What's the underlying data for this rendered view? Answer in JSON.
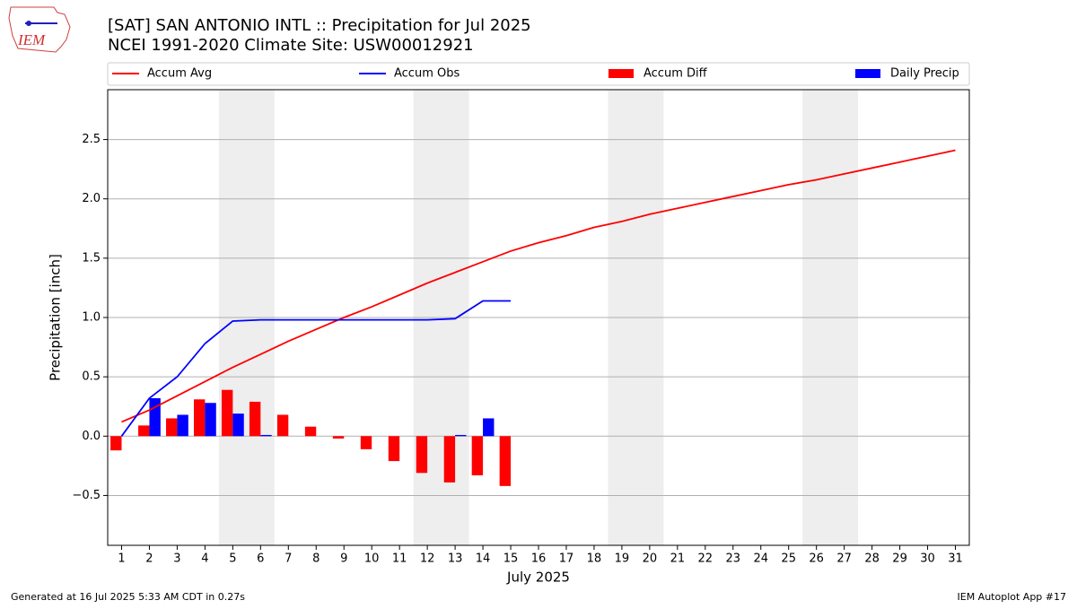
{
  "logo_text": "IEM",
  "footer_left": "Generated at 16 Jul 2025 5:33 AM CDT in 0.27s",
  "footer_right": "IEM Autoplot App #17",
  "chart_data": {
    "type": "line-bar",
    "title": "[SAT] SAN ANTONIO INTL :: Precipitation for Jul 2025",
    "subtitle": "NCEI 1991-2020 Climate Site: USW00012921",
    "x_label": "July 2025",
    "y_label": "Precipitation [inch]",
    "x": [
      1,
      2,
      3,
      4,
      5,
      6,
      7,
      8,
      9,
      10,
      11,
      12,
      13,
      14,
      15,
      16,
      17,
      18,
      19,
      20,
      21,
      22,
      23,
      24,
      25,
      26,
      27,
      28,
      29,
      30,
      31
    ],
    "xlim": [
      0.5,
      31.5
    ],
    "xticks": [
      1,
      2,
      3,
      4,
      5,
      6,
      7,
      8,
      9,
      10,
      11,
      12,
      13,
      14,
      15,
      16,
      17,
      18,
      19,
      20,
      21,
      22,
      23,
      24,
      25,
      26,
      27,
      28,
      29,
      30,
      31
    ],
    "ylim": [
      -0.92,
      2.92
    ],
    "yticks": [
      {
        "value": -0.5,
        "label": "−0.5"
      },
      {
        "value": 0,
        "label": "0.0"
      },
      0.5,
      {
        "value": 1,
        "label": "1.0"
      },
      1.5,
      {
        "value": 2,
        "label": "2.0"
      },
      2.5
    ],
    "grid": true,
    "weekend_spans": [
      [
        4.5,
        6.5
      ],
      [
        11.5,
        13.5
      ],
      [
        18.5,
        20.5
      ],
      [
        25.5,
        27.5
      ]
    ],
    "series": [
      {
        "name": "Accum Avg",
        "kind": "line",
        "color": "#ff0000",
        "values": [
          0.12,
          0.22,
          0.34,
          0.46,
          0.58,
          0.69,
          0.8,
          0.9,
          1.0,
          1.09,
          1.19,
          1.29,
          1.38,
          1.47,
          1.56,
          1.63,
          1.69,
          1.76,
          1.81,
          1.87,
          1.92,
          1.97,
          2.02,
          2.07,
          2.12,
          2.16,
          2.21,
          2.26,
          2.31,
          2.36,
          2.41
        ]
      },
      {
        "name": "Accum Obs",
        "kind": "line",
        "color": "#0000ff",
        "values": [
          0.0,
          0.32,
          0.5,
          0.78,
          0.97,
          0.98,
          0.98,
          0.98,
          0.98,
          0.98,
          0.98,
          0.98,
          0.99,
          1.14,
          1.14,
          null,
          null,
          null,
          null,
          null,
          null,
          null,
          null,
          null,
          null,
          null,
          null,
          null,
          null,
          null,
          null
        ]
      },
      {
        "name": "Accum Diff",
        "kind": "bar",
        "color": "#ff0000",
        "values": [
          -0.12,
          0.09,
          0.15,
          0.31,
          0.39,
          0.29,
          0.18,
          0.08,
          -0.02,
          -0.11,
          -0.21,
          -0.31,
          -0.39,
          -0.33,
          -0.42,
          null,
          null,
          null,
          null,
          null,
          null,
          null,
          null,
          null,
          null,
          null,
          null,
          null,
          null,
          null,
          null
        ]
      },
      {
        "name": "Daily Precip",
        "kind": "bar",
        "color": "#0000ff",
        "values": [
          0.0,
          0.32,
          0.18,
          0.28,
          0.19,
          0.01,
          0,
          0,
          0,
          0,
          0,
          0,
          0.01,
          0.15,
          0,
          null,
          null,
          null,
          null,
          null,
          null,
          null,
          null,
          null,
          null,
          null,
          null,
          null,
          null,
          null,
          null
        ]
      }
    ]
  }
}
